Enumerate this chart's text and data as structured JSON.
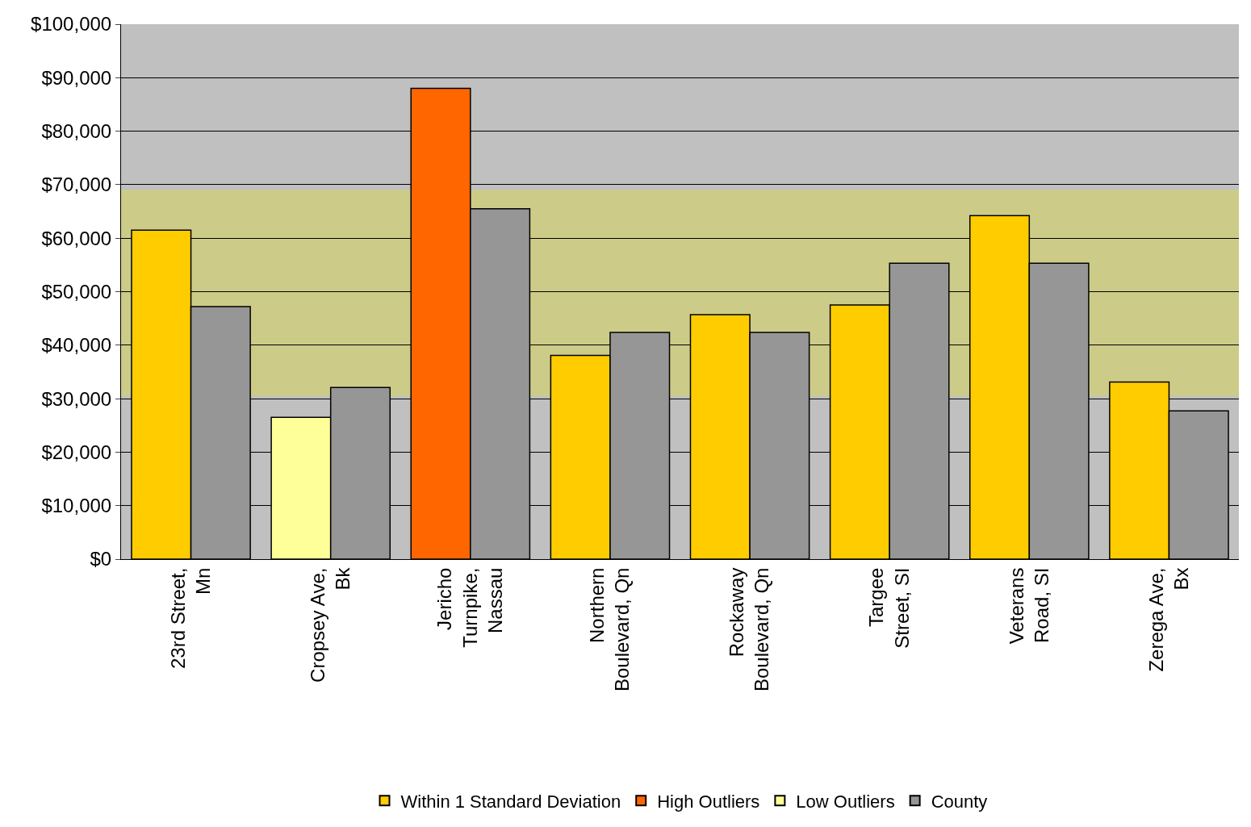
{
  "chart_data": {
    "type": "bar",
    "categories": [
      "23rd Street, Mn",
      "Cropsey Ave, Bk",
      "Jericho Turnpike, Nassau",
      "Northern Boulevard, Qn",
      "Rockaway Boulevard, Qn",
      "Targee Street, SI",
      "Veterans Road, SI",
      "Zerega Ave, Bx"
    ],
    "series": [
      {
        "name": "Within 1 Standard Deviation",
        "color": "#ffcc00",
        "values": [
          61500,
          null,
          null,
          38100,
          45700,
          47500,
          64200,
          33100
        ]
      },
      {
        "name": "High Outliers",
        "color": "#ff6600",
        "values": [
          null,
          null,
          88000,
          null,
          null,
          null,
          null,
          null
        ]
      },
      {
        "name": "Low Outliers",
        "color": "#ffff99",
        "values": [
          null,
          26500,
          null,
          null,
          null,
          null,
          null,
          null
        ]
      },
      {
        "name": "County",
        "color": "#969696",
        "values": [
          47200,
          32100,
          65500,
          42400,
          42400,
          55300,
          55300,
          27700
        ]
      }
    ],
    "ylim": [
      0,
      100000
    ],
    "yticks": [
      {
        "value": 0,
        "label": "$0"
      },
      {
        "value": 10000,
        "label": "$10,000"
      },
      {
        "value": 20000,
        "label": "$20,000"
      },
      {
        "value": 30000,
        "label": "$30,000"
      },
      {
        "value": 40000,
        "label": "$40,000"
      },
      {
        "value": 50000,
        "label": "$50,000"
      },
      {
        "value": 60000,
        "label": "$60,000"
      },
      {
        "value": 70000,
        "label": "$70,000"
      },
      {
        "value": 80000,
        "label": "$80,000"
      },
      {
        "value": 90000,
        "label": "$90,000"
      },
      {
        "value": 100000,
        "label": "$100,000"
      }
    ],
    "bands": [
      {
        "axis": "y",
        "from": 30500,
        "to": 69000,
        "color": "#cccc88"
      }
    ],
    "grid": "y",
    "legend": "bottom"
  }
}
